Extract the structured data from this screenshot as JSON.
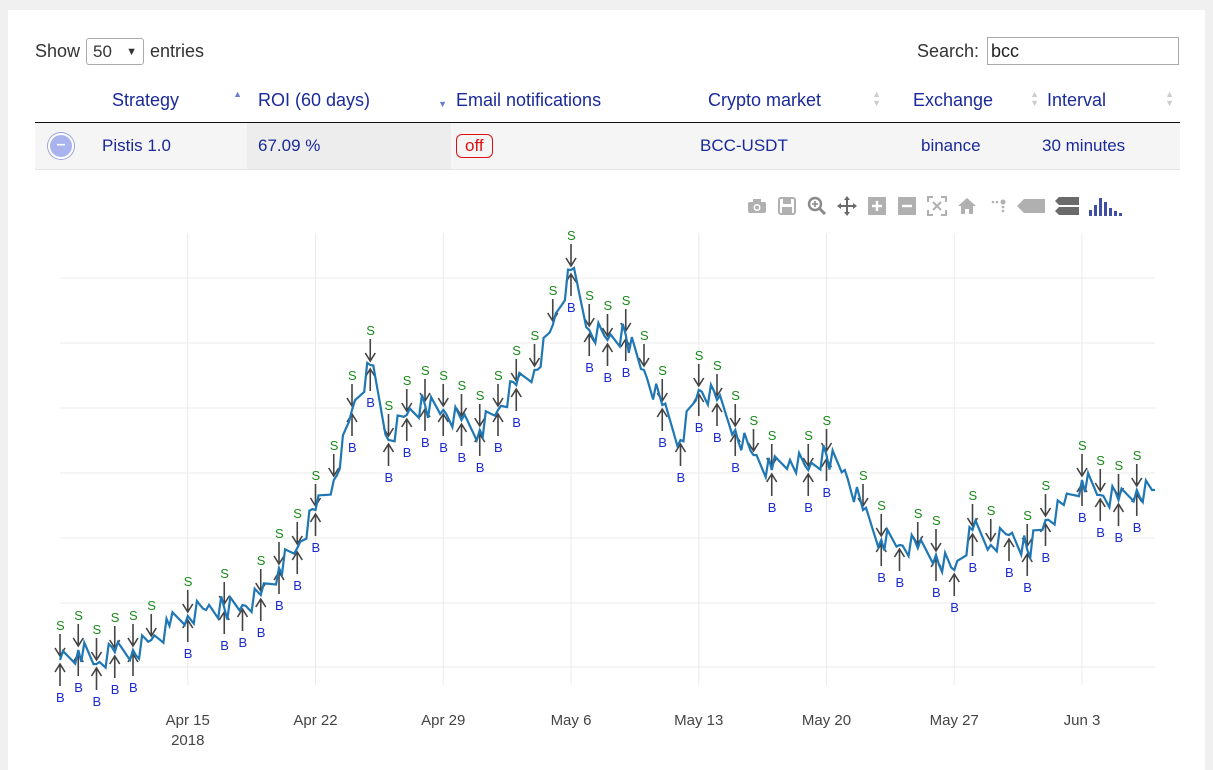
{
  "controls": {
    "show_label": "Show",
    "page_length": "50",
    "entries_label": "entries",
    "search_label": "Search:",
    "search_value": "bcc"
  },
  "table": {
    "columns": [
      "Strategy",
      "ROI (60 days)",
      "Email notifications",
      "Crypto market",
      "Exchange",
      "Interval"
    ],
    "sorted_column": "ROI (60 days)",
    "rows": [
      {
        "strategy": "Pistis 1.0",
        "roi": "67.09 %",
        "email": "off",
        "market": "BCC-USDT",
        "exchange": "binance",
        "interval": "30 minutes"
      }
    ]
  },
  "modebar": {
    "icons": [
      "camera-icon",
      "save-icon",
      "zoom-icon",
      "pan-icon",
      "zoom-in-icon",
      "zoom-out-icon",
      "autoscale-icon",
      "home-icon",
      "spike-lines-icon",
      "hover-closest-icon",
      "hover-compare-icon",
      "plotly-logo-icon"
    ]
  },
  "colors": {
    "line": "#1f77b4",
    "buy": "#1a2ad0",
    "sell": "#1a8a1a",
    "arrow": "#444444",
    "off_badge": "#dd1111"
  },
  "chart_data": {
    "type": "line",
    "x_tick_labels": [
      "Apr 15\n2018",
      "Apr 22",
      "Apr 29",
      "May 6",
      "May 13",
      "May 20",
      "May 27",
      "Jun 3"
    ],
    "x_range": [
      "2018-04-08",
      "2018-06-07"
    ],
    "grid": true,
    "legend": "none",
    "series": [
      {
        "x": [
          "2018-04-08",
          "2018-04-09",
          "2018-04-10",
          "2018-04-11",
          "2018-04-12",
          "2018-04-13",
          "2018-04-14",
          "2018-04-15",
          "2018-04-16",
          "2018-04-17",
          "2018-04-18",
          "2018-04-19",
          "2018-04-20",
          "2018-04-21",
          "2018-04-22",
          "2018-04-23",
          "2018-04-24",
          "2018-04-25",
          "2018-04-26",
          "2018-04-27",
          "2018-04-28",
          "2018-04-29",
          "2018-04-30",
          "2018-05-01",
          "2018-05-02",
          "2018-05-03",
          "2018-05-04",
          "2018-05-05",
          "2018-05-06",
          "2018-05-07",
          "2018-05-08",
          "2018-05-09",
          "2018-05-10",
          "2018-05-11",
          "2018-05-12",
          "2018-05-13",
          "2018-05-14",
          "2018-05-15",
          "2018-05-16",
          "2018-05-17",
          "2018-05-18",
          "2018-05-19",
          "2018-05-20",
          "2018-05-21",
          "2018-05-22",
          "2018-05-23",
          "2018-05-24",
          "2018-05-25",
          "2018-05-26",
          "2018-05-27",
          "2018-05-28",
          "2018-05-29",
          "2018-05-30",
          "2018-05-31",
          "2018-06-01",
          "2018-06-02",
          "2018-06-03",
          "2018-06-04",
          "2018-06-05",
          "2018-06-06",
          "2018-06-07"
        ],
        "y": [
          660,
          650,
          664,
          652,
          650,
          640,
          626,
          616,
          610,
          608,
          605,
          595,
          568,
          548,
          510,
          480,
          410,
          365,
          440,
          415,
          405,
          410,
          420,
          430,
          410,
          385,
          370,
          325,
          270,
          330,
          340,
          335,
          370,
          405,
          440,
          390,
          400,
          430,
          455,
          470,
          460,
          470,
          455,
          470,
          510,
          540,
          545,
          548,
          555,
          570,
          530,
          545,
          535,
          550,
          520,
          505,
          480,
          495,
          500,
          490,
          490
        ]
      }
    ],
    "signals_sell": [
      "2018-04-08",
      "2018-04-09",
      "2018-04-10",
      "2018-04-11",
      "2018-04-12",
      "2018-04-13",
      "2018-04-15",
      "2018-04-17",
      "2018-04-19",
      "2018-04-20",
      "2018-04-21",
      "2018-04-22",
      "2018-04-23",
      "2018-04-24",
      "2018-04-25",
      "2018-04-26",
      "2018-04-27",
      "2018-04-28",
      "2018-04-29",
      "2018-04-30",
      "2018-05-01",
      "2018-05-02",
      "2018-05-03",
      "2018-05-04",
      "2018-05-05",
      "2018-05-06",
      "2018-05-07",
      "2018-05-08",
      "2018-05-09",
      "2018-05-10",
      "2018-05-11",
      "2018-05-13",
      "2018-05-14",
      "2018-05-15",
      "2018-05-16",
      "2018-05-17",
      "2018-05-19",
      "2018-05-20",
      "2018-05-22",
      "2018-05-23",
      "2018-05-25",
      "2018-05-26",
      "2018-05-28",
      "2018-05-29",
      "2018-05-31",
      "2018-06-01",
      "2018-06-03",
      "2018-06-04",
      "2018-06-05",
      "2018-06-06"
    ],
    "signals_buy": [
      "2018-04-08",
      "2018-04-09",
      "2018-04-10",
      "2018-04-11",
      "2018-04-12",
      "2018-04-15",
      "2018-04-17",
      "2018-04-18",
      "2018-04-19",
      "2018-04-20",
      "2018-04-21",
      "2018-04-22",
      "2018-04-24",
      "2018-04-25",
      "2018-04-26",
      "2018-04-27",
      "2018-04-28",
      "2018-04-29",
      "2018-04-30",
      "2018-05-01",
      "2018-05-02",
      "2018-05-03",
      "2018-05-06",
      "2018-05-07",
      "2018-05-08",
      "2018-05-09",
      "2018-05-11",
      "2018-05-12",
      "2018-05-13",
      "2018-05-14",
      "2018-05-15",
      "2018-05-17",
      "2018-05-19",
      "2018-05-20",
      "2018-05-23",
      "2018-05-24",
      "2018-05-26",
      "2018-05-27",
      "2018-05-28",
      "2018-05-30",
      "2018-05-31",
      "2018-06-01",
      "2018-06-03",
      "2018-06-04",
      "2018-06-05",
      "2018-06-06"
    ],
    "signal_labels": {
      "sell": "S",
      "buy": "B"
    }
  }
}
